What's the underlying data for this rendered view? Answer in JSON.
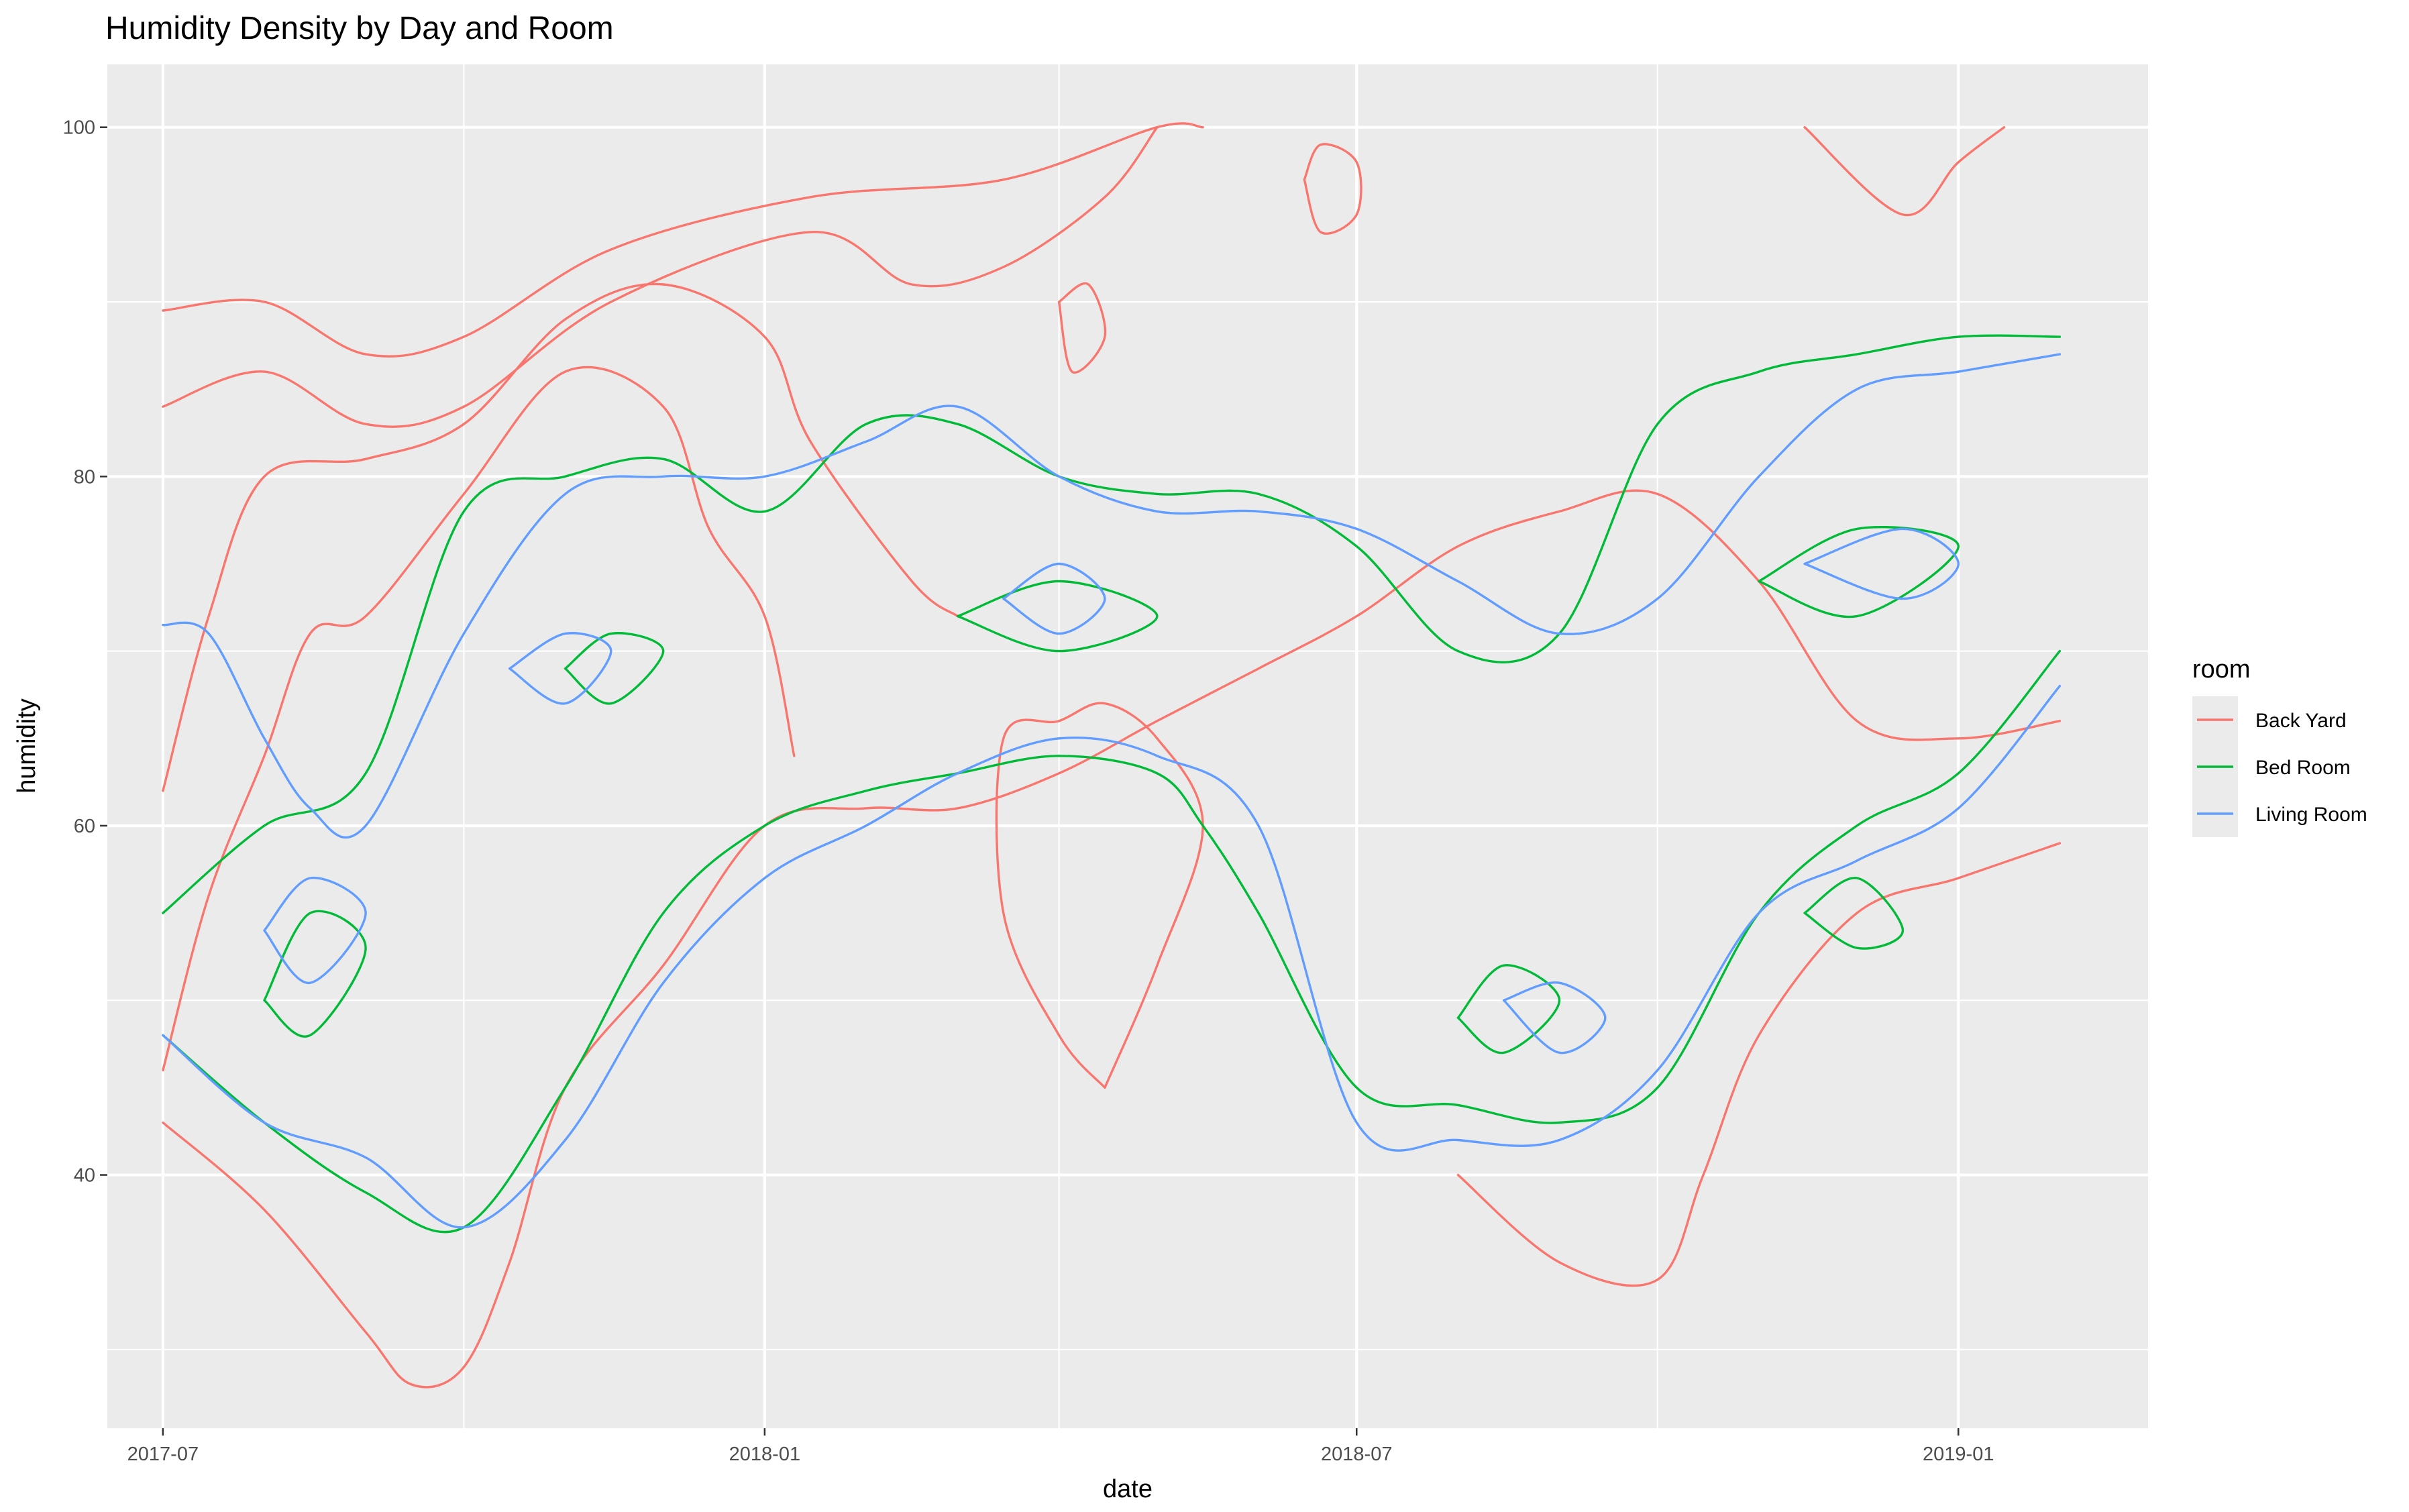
{
  "chart_data": {
    "type": "contour",
    "title": "Humidity Density by Day and Room",
    "xlabel": "date",
    "ylabel": "humidity",
    "x_ticks": [
      "2017-07",
      "2018-01",
      "2018-07",
      "2019-01"
    ],
    "y_ticks": [
      40,
      60,
      80,
      100
    ],
    "xlim": [
      "2017-06-14",
      "2019-02-28"
    ],
    "ylim": [
      25.5,
      103.6
    ],
    "grid": true,
    "legend": {
      "title": "room",
      "position": "right"
    },
    "series": [
      {
        "name": "Back Yard",
        "color": "#F8766D",
        "contours": [
          [
            [
              "2017-07-01",
              89.5
            ],
            [
              "2017-08-01",
              90
            ],
            [
              "2017-09-01",
              87
            ],
            [
              "2017-10-01",
              88
            ],
            [
              "2017-11-15",
              93
            ],
            [
              "2018-01-15",
              96
            ],
            [
              "2018-03-15",
              97
            ],
            [
              "2018-05-01",
              100
            ],
            [
              "2018-05-15",
              100
            ]
          ],
          [
            [
              "2017-07-01",
              84
            ],
            [
              "2017-08-01",
              86
            ],
            [
              "2017-09-01",
              83
            ],
            [
              "2017-10-01",
              84
            ],
            [
              "2017-11-15",
              90
            ],
            [
              "2018-01-15",
              94
            ],
            [
              "2018-02-15",
              91
            ],
            [
              "2018-03-15",
              92
            ],
            [
              "2018-04-15",
              96
            ],
            [
              "2018-05-01",
              100
            ]
          ],
          [
            [
              "2017-07-01",
              62
            ],
            [
              "2017-07-15",
              72
            ],
            [
              "2017-08-01",
              80
            ],
            [
              "2017-09-01",
              81
            ],
            [
              "2017-10-01",
              83
            ],
            [
              "2017-11-01",
              89
            ],
            [
              "2017-12-01",
              91
            ],
            [
              "2018-01-01",
              88
            ],
            [
              "2018-01-15",
              82
            ],
            [
              "2018-02-15",
              74
            ],
            [
              "2018-03-01",
              72
            ]
          ],
          [
            [
              "2017-07-01",
              46
            ],
            [
              "2017-07-15",
              56
            ],
            [
              "2017-08-01",
              64
            ],
            [
              "2017-08-15",
              71
            ],
            [
              "2017-09-01",
              72
            ],
            [
              "2017-10-01",
              79
            ],
            [
              "2017-11-01",
              86
            ],
            [
              "2017-12-01",
              84
            ],
            [
              "2017-12-15",
              77
            ],
            [
              "2018-01-01",
              72
            ],
            [
              "2018-01-10",
              64
            ]
          ],
          [
            [
              "2017-07-01",
              43
            ],
            [
              "2017-08-01",
              38
            ],
            [
              "2017-09-01",
              31
            ],
            [
              "2017-09-15",
              28
            ],
            [
              "2017-10-01",
              29
            ],
            [
              "2017-10-15",
              35
            ],
            [
              "2017-11-01",
              45
            ],
            [
              "2017-12-01",
              52
            ],
            [
              "2018-01-01",
              60
            ],
            [
              "2018-02-01",
              61
            ],
            [
              "2018-03-01",
              61
            ],
            [
              "2018-04-01",
              63
            ],
            [
              "2018-05-01",
              66
            ],
            [
              "2018-06-01",
              69
            ],
            [
              "2018-07-01",
              72
            ],
            [
              "2018-08-01",
              76
            ],
            [
              "2018-09-01",
              78
            ],
            [
              "2018-10-01",
              79
            ],
            [
              "2018-11-01",
              74
            ],
            [
              "2018-12-01",
              66
            ],
            [
              "2019-01-01",
              65
            ],
            [
              "2019-02-01",
              66
            ]
          ],
          [
            [
              "2018-04-15",
              45
            ],
            [
              "2018-04-01",
              48
            ],
            [
              "2018-03-15",
              55
            ],
            [
              "2018-03-15",
              65
            ],
            [
              "2018-04-01",
              66
            ],
            [
              "2018-04-15",
              67
            ],
            [
              "2018-05-01",
              65
            ],
            [
              "2018-05-15",
              60
            ],
            [
              "2018-05-01",
              52
            ],
            [
              "2018-04-15",
              45
            ]
          ],
          [
            [
              "2018-06-15",
              97
            ],
            [
              "2018-06-20",
              99
            ],
            [
              "2018-07-01",
              98
            ],
            [
              "2018-07-01",
              95
            ],
            [
              "2018-06-20",
              94
            ],
            [
              "2018-06-15",
              97
            ]
          ],
          [
            [
              "2018-04-01",
              90
            ],
            [
              "2018-04-10",
              91
            ],
            [
              "2018-04-15",
              88
            ],
            [
              "2018-04-05",
              86
            ],
            [
              "2018-04-01",
              90
            ]
          ],
          [
            [
              "2018-08-01",
              40
            ],
            [
              "2018-09-01",
              35
            ],
            [
              "2018-10-01",
              34
            ],
            [
              "2018-10-15",
              40
            ],
            [
              "2018-11-01",
              48
            ],
            [
              "2018-12-01",
              55
            ],
            [
              "2019-01-01",
              57
            ],
            [
              "2019-02-01",
              59
            ]
          ],
          [
            [
              "2018-11-15",
              100
            ],
            [
              "2018-12-15",
              95
            ],
            [
              "2019-01-01",
              98
            ],
            [
              "2019-01-15",
              100
            ]
          ]
        ]
      },
      {
        "name": "Bed Room",
        "color": "#00BA38",
        "contours": [
          [
            [
              "2017-07-01",
              55
            ],
            [
              "2017-08-01",
              60
            ],
            [
              "2017-09-01",
              63
            ],
            [
              "2017-10-01",
              78
            ],
            [
              "2017-11-01",
              80
            ],
            [
              "2017-12-01",
              81
            ],
            [
              "2018-01-01",
              78
            ],
            [
              "2018-02-01",
              83
            ],
            [
              "2018-03-01",
              83
            ],
            [
              "2018-04-01",
              80
            ],
            [
              "2018-05-01",
              79
            ],
            [
              "2018-06-01",
              79
            ],
            [
              "2018-07-01",
              76
            ],
            [
              "2018-08-01",
              70
            ],
            [
              "2018-09-01",
              71
            ],
            [
              "2018-10-01",
              83
            ],
            [
              "2018-11-01",
              86
            ],
            [
              "2018-12-01",
              87
            ],
            [
              "2019-01-01",
              88
            ],
            [
              "2019-02-01",
              88
            ]
          ],
          [
            [
              "2017-07-01",
              48
            ],
            [
              "2017-08-01",
              43
            ],
            [
              "2017-09-01",
              39
            ],
            [
              "2017-10-01",
              37
            ],
            [
              "2017-11-01",
              45
            ],
            [
              "2017-12-01",
              55
            ],
            [
              "2018-01-01",
              60
            ],
            [
              "2018-02-01",
              62
            ],
            [
              "2018-03-01",
              63
            ],
            [
              "2018-04-01",
              64
            ],
            [
              "2018-05-01",
              63
            ],
            [
              "2018-05-15",
              60
            ],
            [
              "2018-06-01",
              55
            ],
            [
              "2018-07-01",
              45
            ],
            [
              "2018-08-01",
              44
            ],
            [
              "2018-09-01",
              43
            ],
            [
              "2018-10-01",
              45
            ],
            [
              "2018-11-01",
              55
            ],
            [
              "2018-12-01",
              60
            ],
            [
              "2019-01-01",
              63
            ],
            [
              "2019-02-01",
              70
            ]
          ],
          [
            [
              "2017-08-01",
              50
            ],
            [
              "2017-08-15",
              55
            ],
            [
              "2017-09-01",
              53
            ],
            [
              "2017-08-15",
              48
            ],
            [
              "2017-08-01",
              50
            ]
          ],
          [
            [
              "2017-11-01",
              69
            ],
            [
              "2017-11-15",
              71
            ],
            [
              "2017-12-01",
              70
            ],
            [
              "2017-11-15",
              67
            ],
            [
              "2017-11-01",
              69
            ]
          ],
          [
            [
              "2018-03-01",
              72
            ],
            [
              "2018-04-01",
              74
            ],
            [
              "2018-05-01",
              72
            ],
            [
              "2018-04-01",
              70
            ],
            [
              "2018-03-01",
              72
            ]
          ],
          [
            [
              "2018-08-01",
              49
            ],
            [
              "2018-08-15",
              52
            ],
            [
              "2018-09-01",
              50
            ],
            [
              "2018-08-15",
              47
            ],
            [
              "2018-08-01",
              49
            ]
          ],
          [
            [
              "2018-11-01",
              74
            ],
            [
              "2018-12-01",
              77
            ],
            [
              "2019-01-01",
              76
            ],
            [
              "2018-12-01",
              72
            ],
            [
              "2018-11-01",
              74
            ]
          ],
          [
            [
              "2018-11-15",
              55
            ],
            [
              "2018-12-01",
              57
            ],
            [
              "2018-12-15",
              54
            ],
            [
              "2018-12-01",
              53
            ],
            [
              "2018-11-15",
              55
            ]
          ]
        ]
      },
      {
        "name": "Living Room",
        "color": "#619CFF",
        "contours": [
          [
            [
              "2017-07-01",
              71.5
            ],
            [
              "2017-07-15",
              71
            ],
            [
              "2017-08-01",
              65
            ],
            [
              "2017-08-15",
              61
            ],
            [
              "2017-09-01",
              60
            ],
            [
              "2017-10-01",
              71
            ],
            [
              "2017-11-01",
              79
            ],
            [
              "2017-12-01",
              80
            ],
            [
              "2018-01-01",
              80
            ],
            [
              "2018-02-01",
              82
            ],
            [
              "2018-03-01",
              84
            ],
            [
              "2018-04-01",
              80
            ],
            [
              "2018-05-01",
              78
            ],
            [
              "2018-06-01",
              78
            ],
            [
              "2018-07-01",
              77
            ],
            [
              "2018-08-01",
              74
            ],
            [
              "2018-09-01",
              71
            ],
            [
              "2018-10-01",
              73
            ],
            [
              "2018-11-01",
              80
            ],
            [
              "2018-12-01",
              85
            ],
            [
              "2019-01-01",
              86
            ],
            [
              "2019-02-01",
              87
            ]
          ],
          [
            [
              "2017-07-01",
              48
            ],
            [
              "2017-08-01",
              43
            ],
            [
              "2017-09-01",
              41
            ],
            [
              "2017-10-01",
              37
            ],
            [
              "2017-11-01",
              42
            ],
            [
              "2017-12-01",
              51
            ],
            [
              "2018-01-01",
              57
            ],
            [
              "2018-02-01",
              60
            ],
            [
              "2018-03-01",
              63
            ],
            [
              "2018-04-01",
              65
            ],
            [
              "2018-05-01",
              64
            ],
            [
              "2018-06-01",
              60
            ],
            [
              "2018-07-01",
              43
            ],
            [
              "2018-08-01",
              42
            ],
            [
              "2018-09-01",
              42
            ],
            [
              "2018-10-01",
              46
            ],
            [
              "2018-11-01",
              55
            ],
            [
              "2018-12-01",
              58
            ],
            [
              "2019-01-01",
              61
            ],
            [
              "2019-02-01",
              68
            ]
          ],
          [
            [
              "2017-08-01",
              54
            ],
            [
              "2017-08-15",
              57
            ],
            [
              "2017-09-01",
              55
            ],
            [
              "2017-08-15",
              51
            ],
            [
              "2017-08-01",
              54
            ]
          ],
          [
            [
              "2017-10-15",
              69
            ],
            [
              "2017-11-01",
              71
            ],
            [
              "2017-11-15",
              70
            ],
            [
              "2017-11-01",
              67
            ],
            [
              "2017-10-15",
              69
            ]
          ],
          [
            [
              "2018-03-15",
              73
            ],
            [
              "2018-04-01",
              75
            ],
            [
              "2018-04-15",
              73
            ],
            [
              "2018-04-01",
              71
            ],
            [
              "2018-03-15",
              73
            ]
          ],
          [
            [
              "2018-08-15",
              50
            ],
            [
              "2018-09-01",
              51
            ],
            [
              "2018-09-15",
              49
            ],
            [
              "2018-09-01",
              47
            ],
            [
              "2018-08-15",
              50
            ]
          ],
          [
            [
              "2018-11-15",
              75
            ],
            [
              "2018-12-15",
              77
            ],
            [
              "2019-01-01",
              75
            ],
            [
              "2018-12-15",
              73
            ],
            [
              "2018-11-15",
              75
            ]
          ]
        ]
      }
    ]
  }
}
